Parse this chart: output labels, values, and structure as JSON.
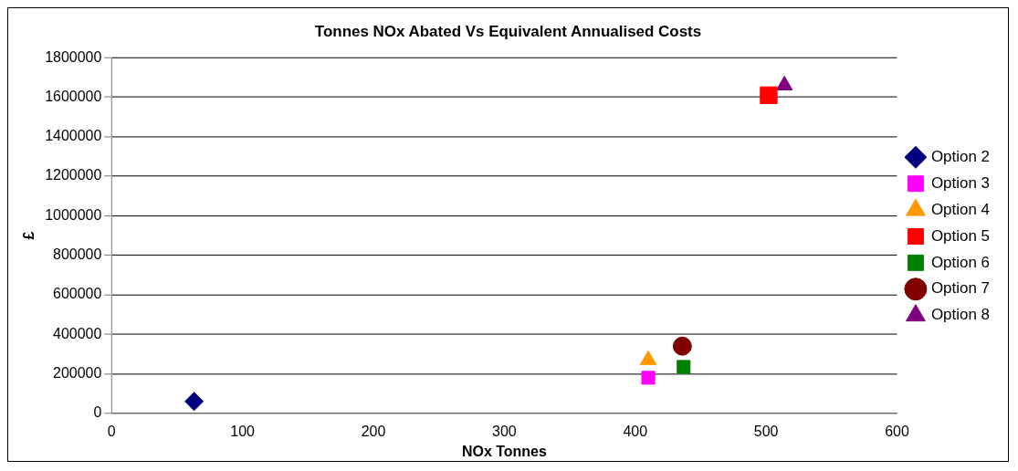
{
  "chart_data": {
    "type": "scatter",
    "title": "Tonnes NOx Abated Vs Equivalent Annualised Costs",
    "xlabel": "NOx Tonnes",
    "ylabel": "£",
    "xlim": [
      0,
      600
    ],
    "xticks": [
      0,
      100,
      200,
      300,
      400,
      500,
      600
    ],
    "ylim": [
      0,
      1800000
    ],
    "yticks": [
      0,
      200000,
      400000,
      600000,
      800000,
      1000000,
      1200000,
      1400000,
      1600000,
      1800000
    ],
    "grid": "y",
    "legend": "right",
    "series": [
      {
        "name": "Option 2",
        "color": "#000080",
        "marker": "diamond",
        "x": [
          63
        ],
        "values": [
          60000
        ]
      },
      {
        "name": "Option 3",
        "color": "#ff00ff",
        "marker": "square",
        "x": [
          410
        ],
        "values": [
          180000
        ]
      },
      {
        "name": "Option 4",
        "color": "#ff9900",
        "marker": "triangle",
        "x": [
          410
        ],
        "values": [
          270000
        ]
      },
      {
        "name": "Option 5",
        "color": "#ff0000",
        "marker": "square",
        "x": [
          502
        ],
        "values": [
          1610000
        ]
      },
      {
        "name": "Option 6",
        "color": "#008000",
        "marker": "square",
        "x": [
          437
        ],
        "values": [
          235000
        ]
      },
      {
        "name": "Option 7",
        "color": "#800000",
        "marker": "circle",
        "x": [
          436
        ],
        "values": [
          340000
        ]
      },
      {
        "name": "Option 8",
        "color": "#800080",
        "marker": "triangle",
        "x": [
          514
        ],
        "values": [
          1660000
        ]
      }
    ]
  }
}
